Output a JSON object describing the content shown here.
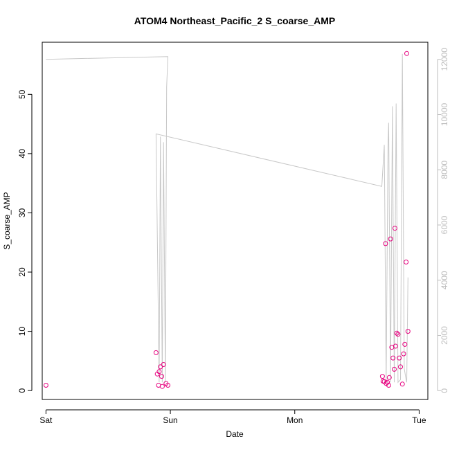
{
  "chart_data": {
    "type": "scatter",
    "title": "ATOM4 Northeast_Pacific_2 S_coarse_AMP",
    "xlabel": "Date",
    "ylabel": "S_coarse_AMP",
    "x_ticks": [
      "Sat",
      "Sun",
      "Mon",
      "Tue"
    ],
    "x_range_days": [
      -0.03,
      3.07
    ],
    "ylim": [
      -1.5,
      58.8
    ],
    "y_ticks": [
      0,
      10,
      20,
      30,
      40,
      50
    ],
    "y2lim": [
      -320,
      12620
    ],
    "y2_ticks": [
      0,
      2000,
      4000,
      6000,
      8000,
      10000,
      12000
    ],
    "colors": {
      "points": "#e6007e",
      "line": "#c8c8c8",
      "right_axis": "#bdbdbd"
    },
    "series": [
      {
        "type": "scatter",
        "axis": "left",
        "points": [
          [
            0.0,
            0.9
          ],
          [
            0.885,
            6.4
          ],
          [
            0.895,
            2.8
          ],
          [
            0.905,
            0.9
          ],
          [
            0.91,
            3.2
          ],
          [
            0.92,
            4.0
          ],
          [
            0.93,
            2.4
          ],
          [
            0.935,
            0.7
          ],
          [
            0.945,
            4.4
          ],
          [
            0.965,
            1.2
          ],
          [
            0.98,
            0.9
          ],
          [
            2.705,
            2.4
          ],
          [
            2.71,
            1.6
          ],
          [
            2.72,
            1.5
          ],
          [
            2.73,
            24.8
          ],
          [
            2.735,
            1.2
          ],
          [
            2.745,
            1.4
          ],
          [
            2.755,
            0.9
          ],
          [
            2.76,
            2.2
          ],
          [
            2.77,
            25.6
          ],
          [
            2.78,
            7.3
          ],
          [
            2.79,
            5.5
          ],
          [
            2.8,
            3.6
          ],
          [
            2.805,
            27.4
          ],
          [
            2.81,
            7.5
          ],
          [
            2.82,
            9.7
          ],
          [
            2.83,
            9.5
          ],
          [
            2.84,
            5.5
          ],
          [
            2.85,
            4.0
          ],
          [
            2.865,
            1.1
          ],
          [
            2.875,
            6.2
          ],
          [
            2.885,
            7.8
          ],
          [
            2.895,
            21.7
          ],
          [
            2.9,
            56.9
          ],
          [
            2.91,
            10.0
          ]
        ]
      },
      {
        "type": "line",
        "axis": "right",
        "points": [
          [
            0.0,
            12000
          ],
          [
            0.98,
            12100
          ],
          [
            0.97,
            11000
          ],
          [
            0.96,
            300
          ],
          [
            0.945,
            9000
          ],
          [
            0.935,
            300
          ],
          [
            0.92,
            9200
          ],
          [
            0.91,
            300
          ],
          [
            0.885,
            9300
          ],
          [
            2.7,
            7400
          ],
          [
            2.72,
            8900
          ],
          [
            2.735,
            300
          ],
          [
            2.75,
            9000
          ],
          [
            2.755,
            9700
          ],
          [
            2.77,
            300
          ],
          [
            2.785,
            10300
          ],
          [
            2.8,
            300
          ],
          [
            2.815,
            10400
          ],
          [
            2.83,
            300
          ],
          [
            2.85,
            400
          ],
          [
            2.865,
            12200
          ],
          [
            2.88,
            800
          ],
          [
            2.895,
            400
          ],
          [
            2.9,
            300
          ],
          [
            2.91,
            4100
          ]
        ]
      }
    ],
    "grid": false,
    "legend": "none"
  }
}
